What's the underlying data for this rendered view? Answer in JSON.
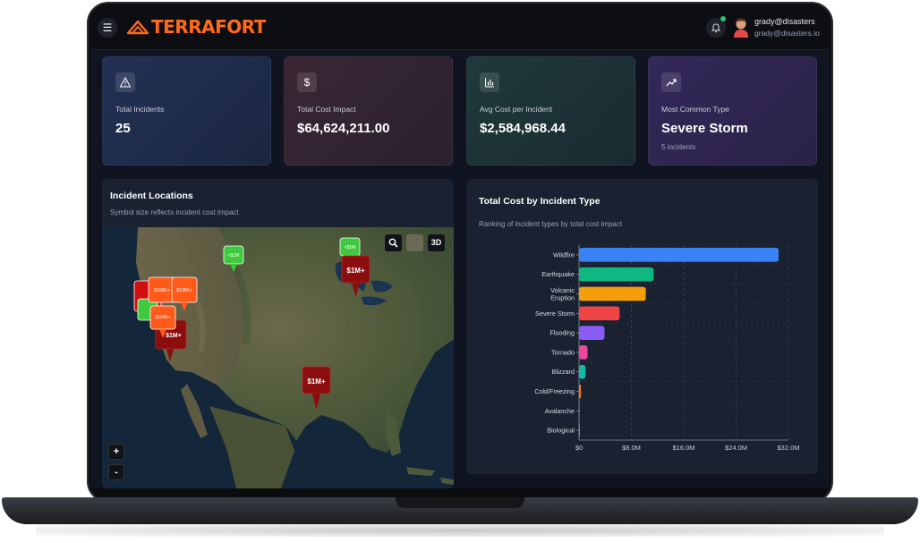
{
  "header": {
    "brand": "TERRAFORT",
    "user_name": "grady@disasters",
    "user_email": "grady@disasters.io"
  },
  "icons": {
    "menu": "menu-icon",
    "bell": "bell-icon",
    "warning": "warning-icon",
    "dollar": "dollar-icon",
    "bar": "bar-chart-icon",
    "trend": "trend-up-icon",
    "search": "search-icon",
    "layers": "satellite-layer-icon"
  },
  "stats": [
    {
      "label": "Total Incidents",
      "value": "25",
      "sub": "",
      "icon": "warning-icon"
    },
    {
      "label": "Total Cost Impact",
      "value": "$64,624,211.00",
      "sub": "",
      "icon": "dollar-icon"
    },
    {
      "label": "Avg Cost per Incident",
      "value": "$2,584,968.44",
      "sub": "",
      "icon": "bar-chart-icon"
    },
    {
      "label": "Most Common Type",
      "value": "Severe Storm",
      "sub": "5 incidents",
      "icon": "trend-up-icon"
    }
  ],
  "map": {
    "title": "Incident Locations",
    "subtitle": "Symbol size reflects incident cost impact",
    "view_3d": "3D",
    "zoom_in": "+",
    "zoom_out": "-",
    "markers": [
      {
        "label": "<$1M",
        "color": "#3ec93e"
      },
      {
        "label": "<$1M",
        "color": "#3ec93e"
      },
      {
        "label": "$1M+",
        "color": "#8b0d0d"
      },
      {
        "label": "$1M+",
        "color": "#8b0d0d"
      },
      {
        "label": "$1M+",
        "color": "#8b0d0d"
      },
      {
        "label": "$100K+",
        "color": "#ff5a1a"
      },
      {
        "label": "$100K+",
        "color": "#ff5a1a"
      },
      {
        "label": "$100K+",
        "color": "#ff5a1a"
      }
    ]
  },
  "chart_panel": {
    "title": "Total Cost by Incident Type",
    "subtitle": "Ranking of incident types by total cost impact"
  },
  "chart_data": {
    "type": "bar",
    "orientation": "horizontal",
    "categories": [
      "Wildfire",
      "Earthquake",
      "Volcanic Eruption",
      "Severe Storm",
      "Flooding",
      "Tornado",
      "Blizzard",
      "Cold/Freezing",
      "Avalanche",
      "Biological"
    ],
    "values": [
      30.5,
      11.4,
      10.2,
      6.2,
      3.9,
      1.3,
      1.0,
      0.3,
      0.05,
      0.02
    ],
    "colors": [
      "#3b82f6",
      "#10b981",
      "#f59e0b",
      "#ef4444",
      "#8b5cf6",
      "#ec4899",
      "#14b8a6",
      "#f97316",
      "#64748b",
      "#94a3b8"
    ],
    "xticks": [
      "$0",
      "$8.0M",
      "$16.0M",
      "$24.0M",
      "$32.0M"
    ],
    "xlim": [
      0,
      32
    ],
    "grid": true
  }
}
